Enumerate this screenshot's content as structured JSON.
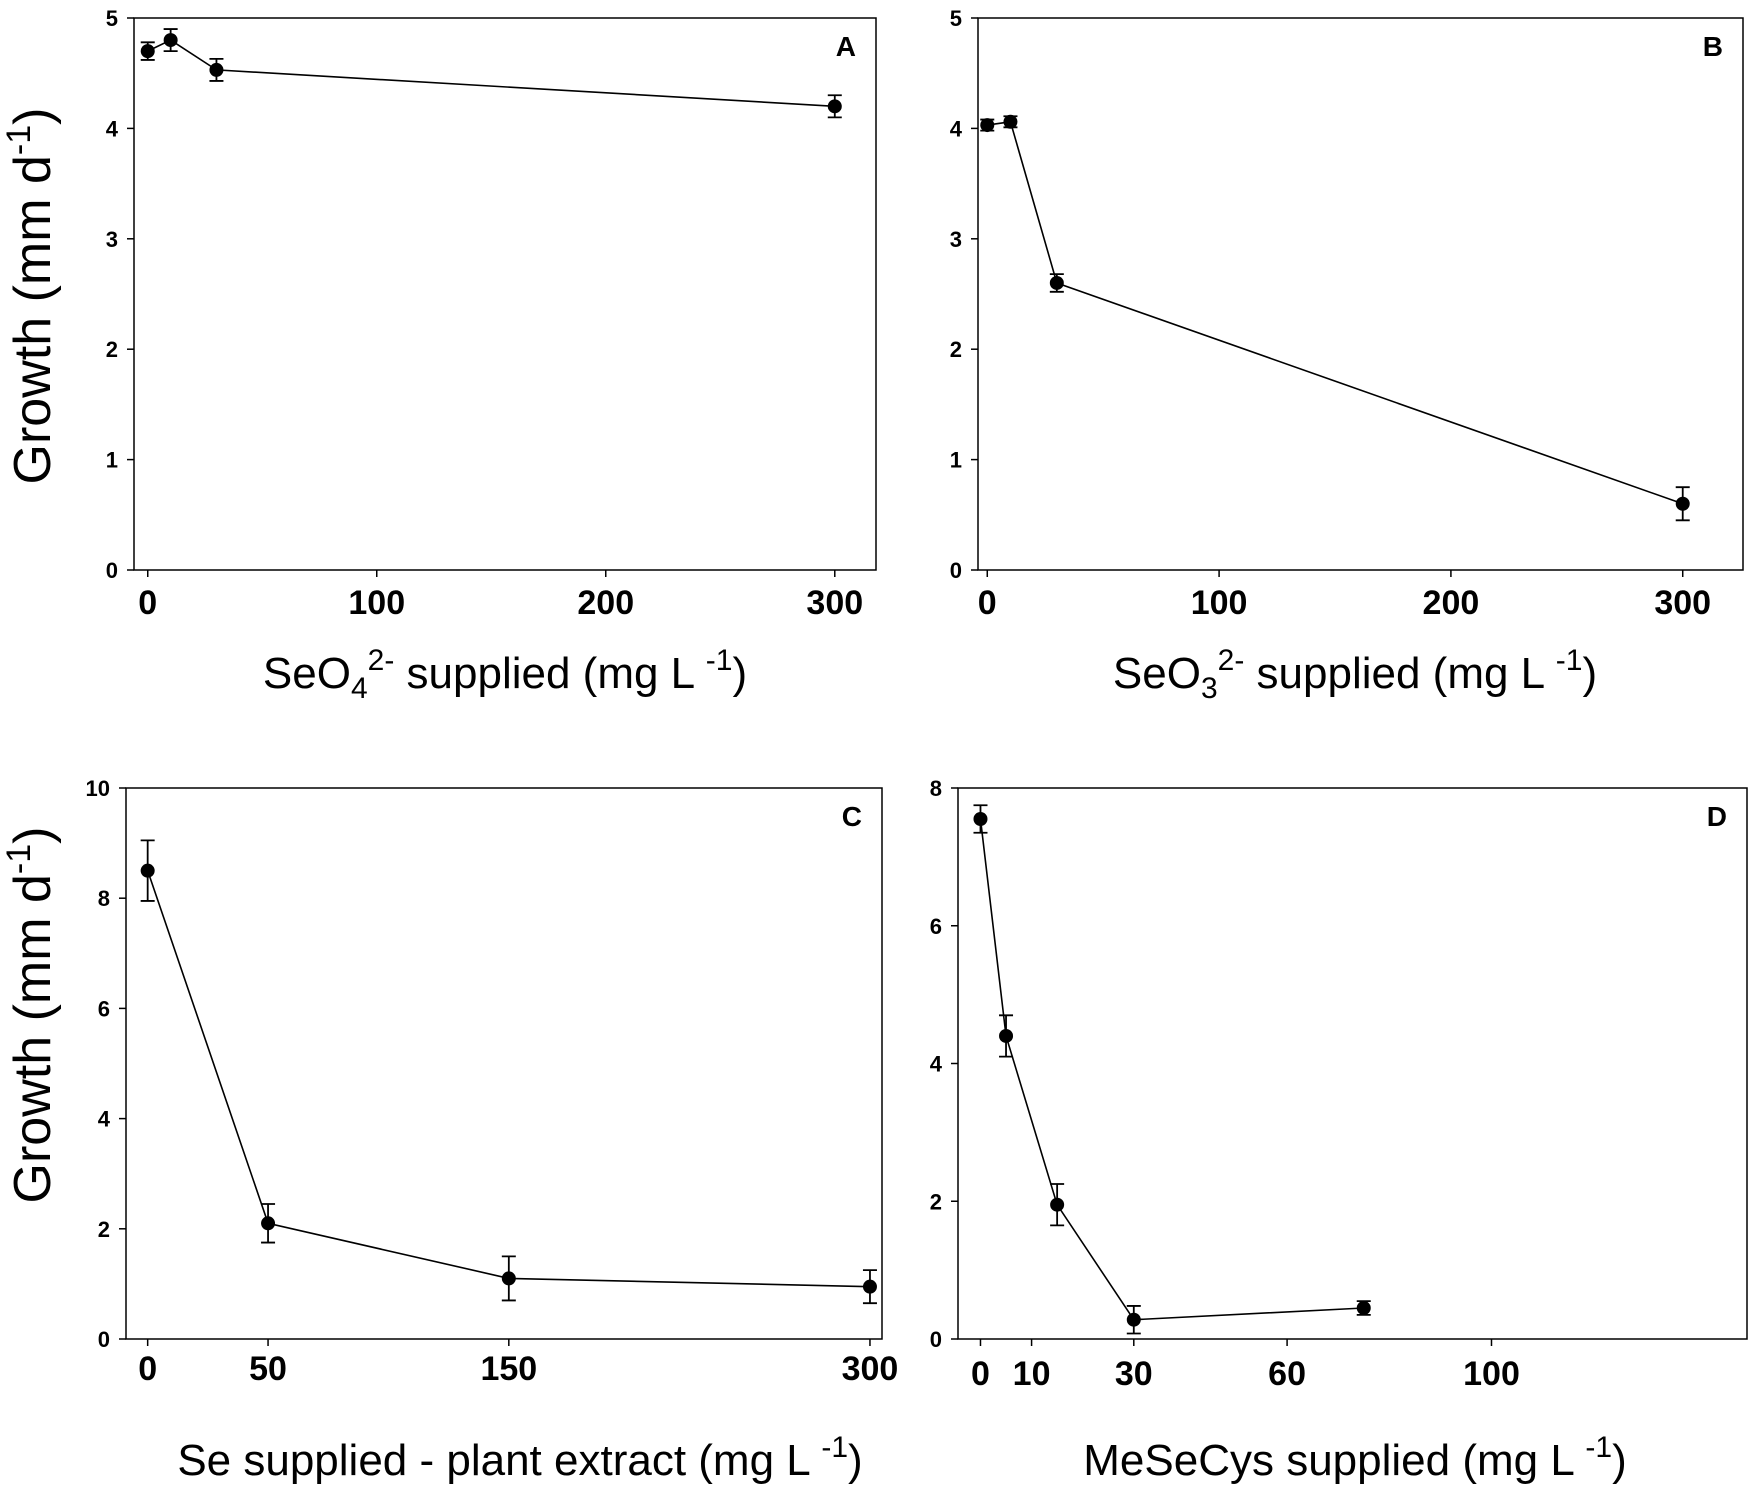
{
  "chart_data": [
    {
      "type": "line",
      "panel_label": "A",
      "xlabel_parts": [
        "SeO",
        "4",
        "2-",
        " supplied (mg L ",
        "-1",
        ")"
      ],
      "ylabel_parts": [
        "Growth  (mm d",
        "-1",
        ")"
      ],
      "x": [
        0,
        10,
        30,
        300
      ],
      "values": [
        4.7,
        4.8,
        4.53,
        4.2
      ],
      "errors": [
        0.08,
        0.1,
        0.1,
        0.1
      ],
      "xlim": [
        -6,
        318
      ],
      "ylim": [
        0,
        5
      ],
      "xticks": [
        0,
        100,
        200,
        300
      ],
      "yticks": [
        0,
        1,
        2,
        3,
        4,
        5
      ],
      "color": "#000000"
    },
    {
      "type": "line",
      "panel_label": "B",
      "xlabel_parts": [
        "SeO",
        "3",
        "2-",
        " supplied (mg L ",
        "-1",
        ")"
      ],
      "x": [
        0,
        10,
        30,
        300
      ],
      "values": [
        4.03,
        4.06,
        2.6,
        0.6
      ],
      "errors": [
        0.05,
        0.05,
        0.08,
        0.15
      ],
      "xlim": [
        -4,
        326
      ],
      "ylim": [
        0,
        5
      ],
      "xticks": [
        0,
        100,
        200,
        300
      ],
      "yticks": [
        0,
        1,
        2,
        3,
        4,
        5
      ],
      "color": "#000000"
    },
    {
      "type": "line",
      "panel_label": "C",
      "xlabel_parts": [
        "Se supplied - plant extract (mg L ",
        "-1",
        ")"
      ],
      "ylabel_parts": [
        "Growth  (mm d",
        "-1",
        ")"
      ],
      "x": [
        0,
        50,
        150,
        300
      ],
      "values": [
        8.5,
        2.1,
        1.1,
        0.95
      ],
      "errors": [
        0.55,
        0.35,
        0.4,
        0.3
      ],
      "xlim": [
        -9,
        305
      ],
      "ylim": [
        0,
        10
      ],
      "xticks": [
        0,
        50,
        150,
        300
      ],
      "yticks": [
        0,
        2,
        4,
        6,
        8,
        10
      ],
      "color": "#000000"
    },
    {
      "type": "line",
      "panel_label": "D",
      "xlabel_parts": [
        "MeSeCys supplied (mg L ",
        "-1",
        ")"
      ],
      "x": [
        0,
        5,
        15,
        30,
        75
      ],
      "values": [
        7.55,
        4.4,
        1.95,
        0.28,
        0.45
      ],
      "errors": [
        0.2,
        0.3,
        0.3,
        0.2,
        0.1
      ],
      "xlim": [
        -4.4,
        150
      ],
      "ylim": [
        0,
        8
      ],
      "xticks": [
        0,
        10,
        30,
        60,
        100
      ],
      "yticks": [
        0,
        2,
        4,
        6,
        8
      ],
      "color": "#000000"
    }
  ]
}
